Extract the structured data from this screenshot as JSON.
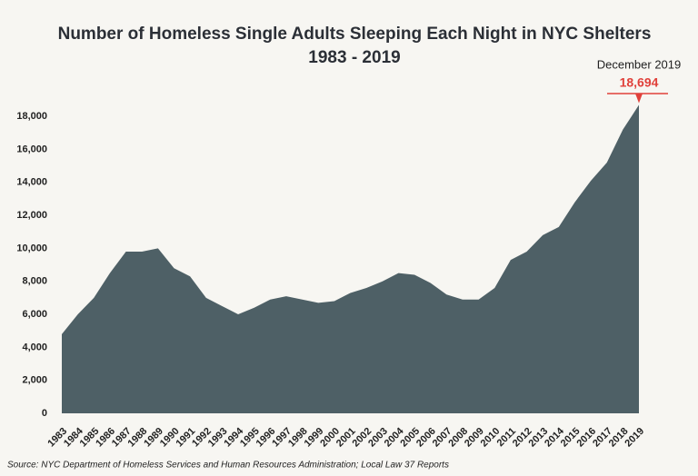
{
  "chart_data": {
    "type": "area",
    "title": "Number of Homeless Single Adults Sleeping Each Night in NYC Shelters",
    "subtitle": "1983 - 2019",
    "categories": [
      "1983",
      "1984",
      "1985",
      "1986",
      "1987",
      "1988",
      "1989",
      "1990",
      "1991",
      "1992",
      "1993",
      "1994",
      "1995",
      "1996",
      "1997",
      "1998",
      "1999",
      "2000",
      "2001",
      "2002",
      "2003",
      "2004",
      "2005",
      "2006",
      "2007",
      "2008",
      "2009",
      "2010",
      "2011",
      "2012",
      "2013",
      "2014",
      "2015",
      "2016",
      "2017",
      "2018",
      "2019"
    ],
    "values": [
      4800,
      6000,
      7000,
      8500,
      9800,
      9800,
      10000,
      8800,
      8300,
      7000,
      6500,
      6000,
      6400,
      6900,
      7100,
      6900,
      6700,
      6800,
      7300,
      7600,
      8000,
      8500,
      8400,
      7900,
      7200,
      6900,
      6900,
      7600,
      9300,
      9800,
      10800,
      11300,
      12800,
      14100,
      15200,
      17200,
      18694
    ],
    "value_labels": [
      null,
      null,
      null,
      null,
      null,
      null,
      null,
      null,
      null,
      null,
      null,
      null,
      null,
      null,
      null,
      null,
      null,
      null,
      null,
      null,
      null,
      null,
      null,
      null,
      null,
      null,
      null,
      null,
      null,
      null,
      null,
      null,
      null,
      null,
      null,
      null,
      "18,694"
    ],
    "annotation": "December 2019",
    "color": "#4e6066",
    "label_color": "#e0403a",
    "ylim": [
      0,
      19000
    ],
    "yticks": [
      0,
      {
        "value": 2000,
        "label": "2,000"
      },
      {
        "value": 4000,
        "label": "4,000"
      },
      {
        "value": 6000,
        "label": "6,000"
      },
      {
        "value": 8000,
        "label": "8,000"
      },
      {
        "value": 10000,
        "label": "10,000"
      },
      {
        "value": 12000,
        "label": "12,000"
      },
      {
        "value": 14000,
        "label": "14,000"
      },
      {
        "value": 16000,
        "label": "16,000"
      },
      {
        "value": 18000,
        "label": "18,000"
      }
    ],
    "source": "Source:  NYC Department of Homeless Services and Human Resources Administration; Local Law 37 Reports"
  }
}
